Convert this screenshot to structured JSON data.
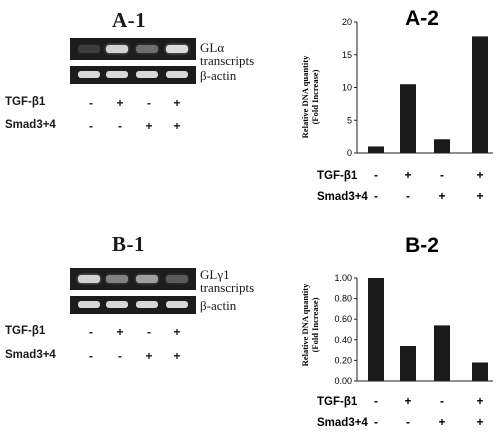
{
  "panels": {
    "a1": {
      "title": "A-1",
      "gel_top_label_line1": "GLα",
      "gel_top_label_line2": "transcripts",
      "gel_bottom_label": "β-actin",
      "row1_label": "TGF-β1",
      "row2_label": "Smad3+4",
      "row1_signs": [
        "-",
        "+",
        "-",
        "+"
      ],
      "row2_signs": [
        "-",
        "-",
        "+",
        "+"
      ],
      "top_band_intensity": [
        0.1,
        0.85,
        0.35,
        0.9
      ]
    },
    "b1": {
      "title": "B-1",
      "gel_top_label_line1": "GLγ1",
      "gel_top_label_line2": "transcripts",
      "gel_bottom_label": "β-actin",
      "row1_label": "TGF-β1",
      "row2_label": "Smad3+4",
      "row1_signs": [
        "-",
        "+",
        "-",
        "+"
      ],
      "row2_signs": [
        "-",
        "-",
        "+",
        "+"
      ],
      "top_band_intensity": [
        0.85,
        0.45,
        0.6,
        0.25
      ]
    }
  },
  "chart_data": [
    {
      "type": "bar",
      "title": "A-2",
      "ylabel_line1": "Relative DNA quantity",
      "ylabel_line2": "(Fold Increase)",
      "ylim": [
        0,
        20
      ],
      "yticks": [
        "0",
        "5",
        "10",
        "15",
        "20"
      ],
      "values": [
        1.0,
        10.5,
        2.1,
        17.8
      ],
      "row1_label": "TGF-β1",
      "row2_label": "Smad3+4",
      "row1_signs": [
        "-",
        "+",
        "-",
        "+"
      ],
      "row2_signs": [
        "-",
        "-",
        "+",
        "+"
      ],
      "bar_color": "#1a1a1a"
    },
    {
      "type": "bar",
      "title": "B-2",
      "ylabel_line1": "Relative DNA quantity",
      "ylabel_line2": "(Fold Increase)",
      "ylim": [
        0,
        1.0
      ],
      "yticks": [
        "0.00",
        "0.20",
        "0.40",
        "0.60",
        "0.80",
        "1.00"
      ],
      "values": [
        1.0,
        0.34,
        0.54,
        0.18
      ],
      "row1_label": "TGF-β1",
      "row2_label": "Smad3+4",
      "row1_signs": [
        "-",
        "+",
        "-",
        "+"
      ],
      "row2_signs": [
        "-",
        "-",
        "+",
        "+"
      ],
      "bar_color": "#1a1a1a"
    }
  ]
}
